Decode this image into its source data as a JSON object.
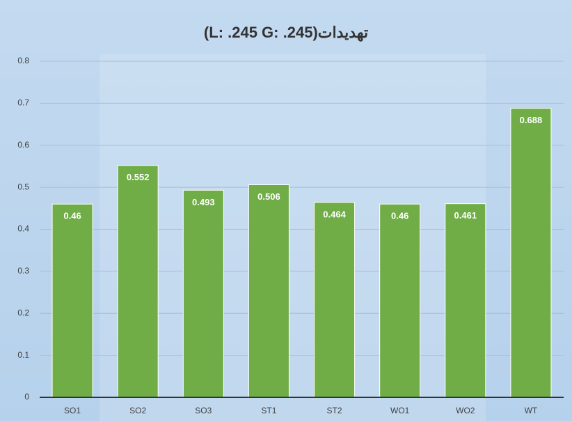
{
  "chart_data": {
    "type": "bar",
    "title": "تهدیدات(L: .245 G: .245)",
    "categories": [
      "SO1",
      "SO2",
      "SO3",
      "ST1",
      "ST2",
      "WO1",
      "WO2",
      "WT"
    ],
    "values": [
      0.46,
      0.552,
      0.493,
      0.506,
      0.464,
      0.46,
      0.461,
      0.688
    ],
    "color": "#70ad47",
    "ylim": [
      0,
      0.8
    ],
    "yticks": [
      0,
      0.1,
      0.2,
      0.3,
      0.4,
      0.5,
      0.6,
      0.7,
      0.8
    ],
    "grid": true
  }
}
